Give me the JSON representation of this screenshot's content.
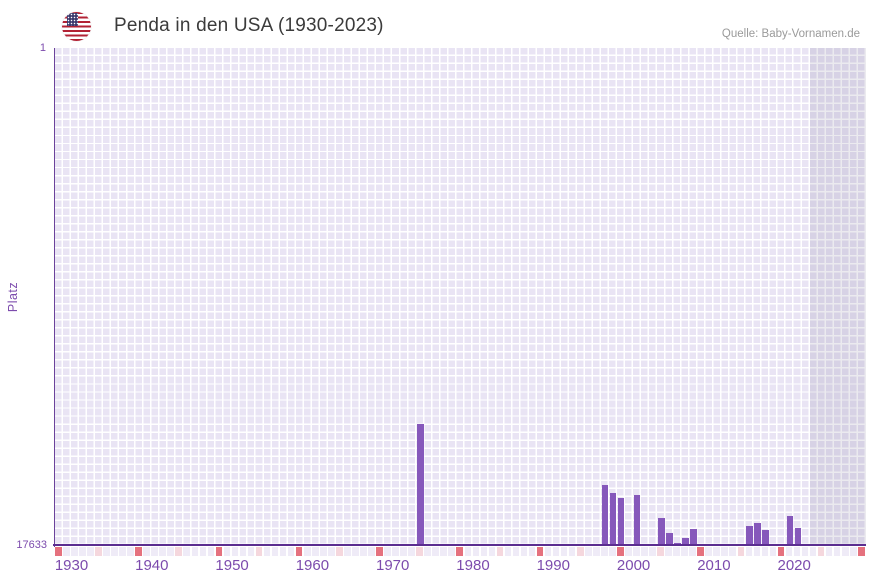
{
  "header": {
    "title": "Penda in den USA (1930-2023)",
    "source": "Quelle: Baby-Vornamen.de",
    "flag_icon": "us-flag"
  },
  "axes": {
    "y_title": "Platz",
    "y_top_label": "1",
    "y_bottom_label": "17633",
    "y_min": 1,
    "y_max": 17633,
    "x_start": 1930,
    "x_end": 2030,
    "no_data_from": 2024,
    "x_labels": [
      "1930",
      "1940",
      "1950",
      "1960",
      "1970",
      "1980",
      "1990",
      "2000",
      "2010",
      "2020"
    ]
  },
  "chart_data": {
    "type": "bar",
    "title": "Penda in den USA (1930-2023)",
    "xlabel": "",
    "ylabel": "Platz",
    "x_range": [
      1930,
      2030
    ],
    "data_range": [
      1930,
      2023
    ],
    "y_axis_inverted": true,
    "ylim": [
      1,
      17633
    ],
    "grid": true,
    "legend": false,
    "series": [
      {
        "name": "Penda",
        "points": [
          {
            "year": 1975,
            "rank": 13350
          },
          {
            "year": 1998,
            "rank": 15520
          },
          {
            "year": 1999,
            "rank": 15780
          },
          {
            "year": 2000,
            "rank": 15980
          },
          {
            "year": 2002,
            "rank": 15870
          },
          {
            "year": 2005,
            "rank": 16690
          },
          {
            "year": 2006,
            "rank": 17200
          },
          {
            "year": 2007,
            "rank": 17570
          },
          {
            "year": 2008,
            "rank": 17400
          },
          {
            "year": 2009,
            "rank": 17060
          },
          {
            "year": 2016,
            "rank": 16960
          },
          {
            "year": 2017,
            "rank": 16860
          },
          {
            "year": 2018,
            "rank": 17100
          },
          {
            "year": 2021,
            "rank": 16610
          },
          {
            "year": 2022,
            "rank": 17040
          }
        ]
      }
    ]
  },
  "colors": {
    "bar": "#8658bb",
    "axis_line": "#5b2d90",
    "axis_text": "#7c4bad",
    "grid_cell": "#e9e4f4",
    "decade_tick": "#e5717e",
    "half_decade_tick": "#f5d7dd",
    "plain_tick": "#efebf7",
    "title_text": "#3b3b3b",
    "source_text": "#9a9a9a",
    "flag_red": "#b22234",
    "flag_blue": "#3c3b6e"
  }
}
